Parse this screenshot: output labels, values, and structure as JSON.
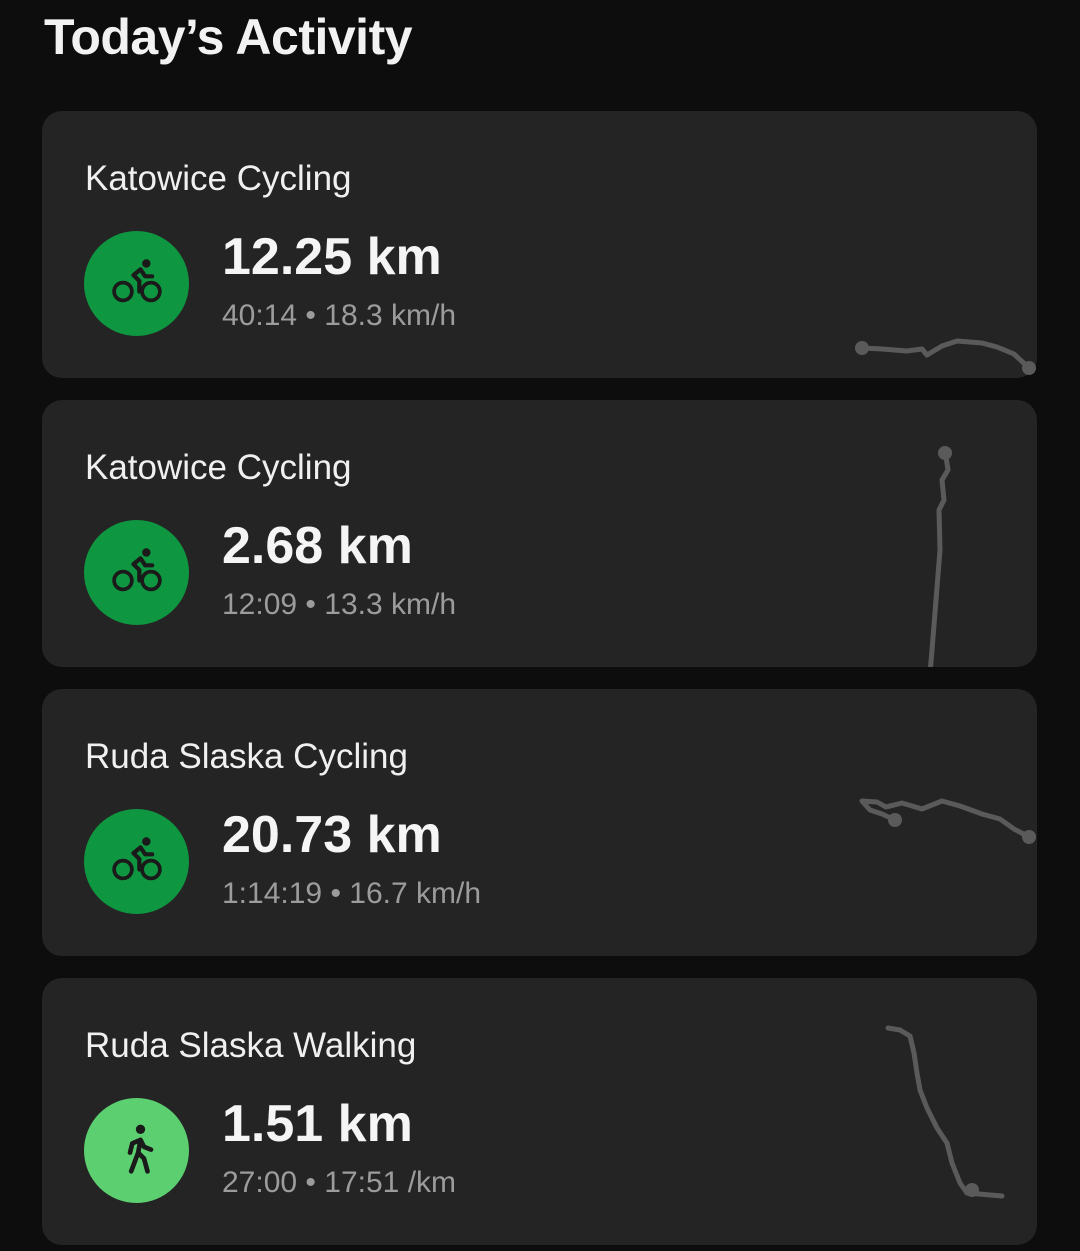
{
  "header": {
    "title": "Today’s Activity"
  },
  "colors": {
    "cycling": "#0f9640",
    "walking": "#5ccf70",
    "card": "#242424",
    "route": "#5a5a5a"
  },
  "activities": [
    {
      "name": "Katowice Cycling",
      "distance": "12.25 km",
      "duration": "40:14",
      "pace": "18.3 km/h",
      "type": "cycling",
      "icon": "bicycle-icon"
    },
    {
      "name": "Katowice Cycling",
      "distance": "2.68 km",
      "duration": "12:09",
      "pace": "13.3 km/h",
      "type": "cycling",
      "icon": "bicycle-icon"
    },
    {
      "name": "Ruda Slaska Cycling",
      "distance": "20.73 km",
      "duration": "1:14:19",
      "pace": "16.7 km/h",
      "type": "cycling",
      "icon": "bicycle-icon"
    },
    {
      "name": "Ruda Slaska Walking",
      "distance": "1.51 km",
      "duration": "27:00",
      "pace": "17:51 /km",
      "type": "walking",
      "icon": "walking-icon"
    }
  ],
  "separator": "•"
}
